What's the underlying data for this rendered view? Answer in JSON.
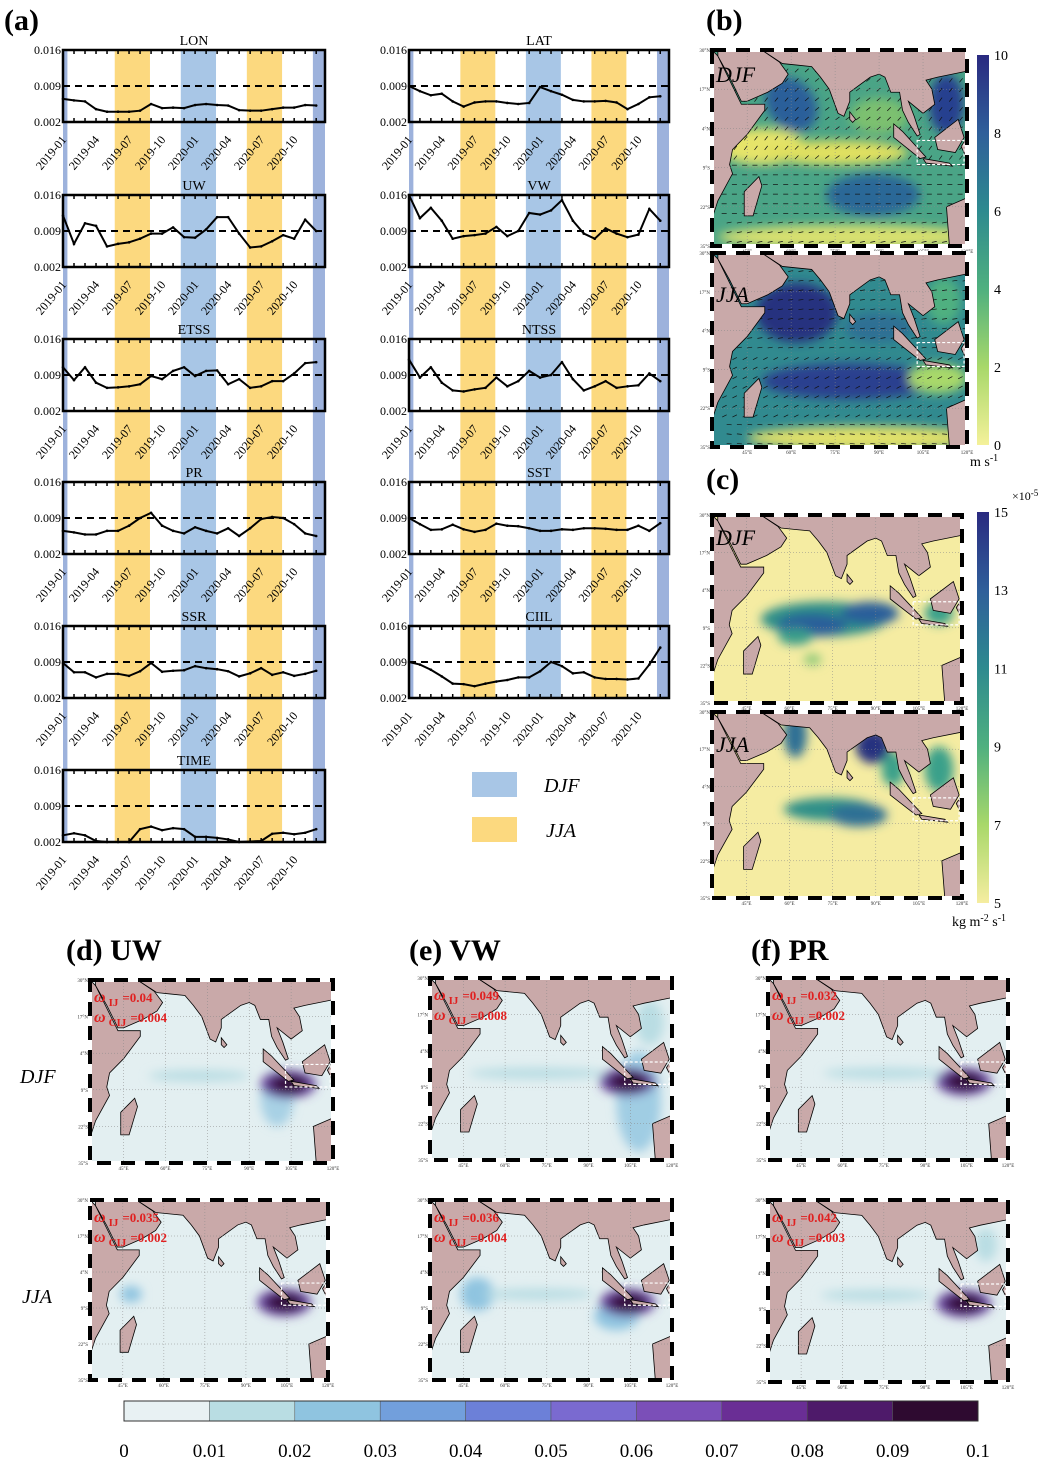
{
  "figure_labels": {
    "a": "(a)",
    "b": "(b)",
    "c": "(c)"
  },
  "colors": {
    "djf_band": "#a8c6e6",
    "djf_band_edge": "#9db2dc",
    "jja_band": "#fcd97f",
    "land": "#c9a9a9",
    "line": "#000000"
  },
  "legend": {
    "items": [
      {
        "label": "DJF",
        "color": "#a8c6e6"
      },
      {
        "label": "JJA",
        "color": "#fcd97f"
      }
    ]
  },
  "chart_data": [
    {
      "type": "line",
      "panel": "(a)",
      "x": [
        "2019-01",
        "2019-02",
        "2019-03",
        "2019-04",
        "2019-05",
        "2019-06",
        "2019-07",
        "2019-08",
        "2019-09",
        "2019-10",
        "2019-11",
        "2019-12",
        "2020-01",
        "2020-02",
        "2020-03",
        "2020-04",
        "2020-05",
        "2020-06",
        "2020-07",
        "2020-08",
        "2020-09",
        "2020-10",
        "2020-11",
        "2020-12"
      ],
      "xticks": [
        "2019-01",
        "2019-04",
        "2019-07",
        "2019-10",
        "2020-01",
        "2020-04",
        "2020-07",
        "2020-10"
      ],
      "ylim": [
        0.002,
        0.016
      ],
      "yticks": [
        "0.016",
        "0.009",
        "0.002"
      ],
      "reference_line": 0.009,
      "bands": [
        {
          "season": "DJF",
          "from": "2019-01",
          "to": "2019-01"
        },
        {
          "season": "JJA",
          "from": "2019-06",
          "to": "2019-08"
        },
        {
          "season": "DJF",
          "from": "2019-12",
          "to": "2020-02"
        },
        {
          "season": "JJA",
          "from": "2020-06",
          "to": "2020-08"
        },
        {
          "season": "DJF",
          "from": "2020-12",
          "to": "2020-12"
        }
      ],
      "series": [
        {
          "name": "LON",
          "values": [
            0.0065,
            0.0062,
            0.006,
            0.0045,
            0.004,
            0.004,
            0.004,
            0.0042,
            0.0055,
            0.0047,
            0.0048,
            0.0047,
            0.0053,
            0.0055,
            0.0053,
            0.0052,
            0.0043,
            0.0042,
            0.0042,
            0.0045,
            0.0048,
            0.0048,
            0.0053,
            0.0052
          ]
        },
        {
          "name": "LAT",
          "values": [
            0.009,
            0.008,
            0.0072,
            0.0075,
            0.006,
            0.005,
            0.0058,
            0.006,
            0.006,
            0.0057,
            0.0055,
            0.0057,
            0.0088,
            0.008,
            0.0073,
            0.0063,
            0.006,
            0.006,
            0.0061,
            0.0058,
            0.0045,
            0.0055,
            0.0068,
            0.007
          ]
        },
        {
          "name": "UW",
          "values": [
            0.012,
            0.0065,
            0.0105,
            0.01,
            0.006,
            0.0065,
            0.0068,
            0.0075,
            0.0085,
            0.0085,
            0.0097,
            0.0078,
            0.0077,
            0.0093,
            0.0117,
            0.0117,
            0.0085,
            0.0058,
            0.006,
            0.007,
            0.0082,
            0.0075,
            0.0112,
            0.009
          ]
        },
        {
          "name": "VW",
          "values": [
            0.016,
            0.0115,
            0.0135,
            0.011,
            0.0075,
            0.008,
            0.0082,
            0.0085,
            0.0098,
            0.008,
            0.009,
            0.0125,
            0.0122,
            0.013,
            0.015,
            0.011,
            0.0085,
            0.0075,
            0.0095,
            0.0085,
            0.0078,
            0.0083,
            0.0133,
            0.011
          ]
        },
        {
          "name": "ETSS",
          "values": [
            0.0105,
            0.008,
            0.0105,
            0.0075,
            0.0065,
            0.0066,
            0.0068,
            0.0072,
            0.0088,
            0.0082,
            0.0098,
            0.0105,
            0.0088,
            0.0098,
            0.0099,
            0.0072,
            0.0082,
            0.0065,
            0.0068,
            0.0078,
            0.0078,
            0.0093,
            0.0113,
            0.0115
          ]
        },
        {
          "name": "NTSS",
          "values": [
            0.012,
            0.0085,
            0.0105,
            0.0075,
            0.006,
            0.0058,
            0.0062,
            0.0065,
            0.0085,
            0.0068,
            0.0078,
            0.0098,
            0.0085,
            0.009,
            0.0115,
            0.0082,
            0.006,
            0.0068,
            0.0078,
            0.0065,
            0.0068,
            0.007,
            0.0093,
            0.0078
          ]
        },
        {
          "name": "PR",
          "values": [
            0.0065,
            0.0062,
            0.0058,
            0.0058,
            0.0065,
            0.0065,
            0.0075,
            0.009,
            0.01,
            0.0075,
            0.0065,
            0.006,
            0.0072,
            0.0065,
            0.006,
            0.007,
            0.0055,
            0.007,
            0.0088,
            0.0092,
            0.009,
            0.0078,
            0.006,
            0.0055
          ]
        },
        {
          "name": "SST",
          "values": [
            0.009,
            0.0078,
            0.0067,
            0.0068,
            0.0077,
            0.0068,
            0.0063,
            0.0067,
            0.0079,
            0.0075,
            0.0074,
            0.007,
            0.0065,
            0.0065,
            0.0068,
            0.0067,
            0.007,
            0.007,
            0.0069,
            0.0067,
            0.0067,
            0.0075,
            0.0065,
            0.008
          ]
        },
        {
          "name": "SSR",
          "values": [
            0.0088,
            0.007,
            0.007,
            0.006,
            0.0067,
            0.0067,
            0.0063,
            0.0072,
            0.0088,
            0.0071,
            0.0073,
            0.0074,
            0.0082,
            0.0078,
            0.0076,
            0.0072,
            0.0062,
            0.0068,
            0.0078,
            0.0065,
            0.007,
            0.0063,
            0.0067,
            0.0073
          ]
        },
        {
          "name": "CIIL",
          "values": [
            0.009,
            0.0085,
            0.0075,
            0.0062,
            0.0048,
            0.0047,
            0.0043,
            0.0048,
            0.0052,
            0.0055,
            0.006,
            0.006,
            0.0072,
            0.009,
            0.0082,
            0.0068,
            0.007,
            0.006,
            0.0057,
            0.0057,
            0.0056,
            0.0058,
            0.0085,
            0.0118
          ]
        },
        {
          "name": "TIME",
          "values": [
            0.0033,
            0.0037,
            0.0033,
            0.0022,
            0.002,
            0.002,
            0.002,
            0.0045,
            0.005,
            0.0043,
            0.0047,
            0.0045,
            0.003,
            0.003,
            0.0028,
            0.0025,
            0.002,
            0.0021,
            0.0022,
            0.0036,
            0.0038,
            0.0035,
            0.0038,
            0.0045
          ]
        }
      ]
    },
    {
      "type": "heatmap",
      "panel": "(b)",
      "maps": [
        {
          "label": "DJF"
        },
        {
          "label": "JJA"
        }
      ],
      "colorbar": {
        "ticks": [
          "10",
          "8",
          "6",
          "4",
          "2",
          "0"
        ],
        "range": [
          0,
          10
        ],
        "unit_main": "m s",
        "unit_exp": "-1",
        "colors": [
          "#f4f19a",
          "#a8d86a",
          "#4fb07f",
          "#2e8a8f",
          "#2f5f9a",
          "#2a2a80"
        ]
      },
      "vectors": true
    },
    {
      "type": "heatmap",
      "panel": "(c)",
      "maps": [
        {
          "label": "DJF"
        },
        {
          "label": "JJA"
        }
      ],
      "colorbar": {
        "ticks": [
          "15",
          "13",
          "11",
          "9",
          "7",
          "5"
        ],
        "range": [
          5,
          15
        ],
        "scale": "×10",
        "scale_exp": "-5",
        "unit_main": "kg m",
        "unit_exp1": "-2",
        "unit_mid": " s",
        "unit_exp2": "-1",
        "colors": [
          "#f5eda0",
          "#a8d86a",
          "#4fb07f",
          "#2e8a8f",
          "#2f5f9a",
          "#2a2a80"
        ]
      }
    },
    {
      "type": "heatmap",
      "panels": [
        {
          "title": "(d) UW",
          "rows": [
            {
              "season": "DJF",
              "annotations": [
                {
                  "symbol": "ω",
                  "sub": "IJ",
                  "value": "=0.04"
                },
                {
                  "symbol": "ω",
                  "sub": "CIJ",
                  "value": "=0.004"
                }
              ]
            },
            {
              "season": "JJA",
              "annotations": [
                {
                  "symbol": "ω",
                  "sub": "IJ",
                  "value": "=0.035"
                },
                {
                  "symbol": "ω",
                  "sub": "CIJ",
                  "value": "=0.002"
                }
              ]
            }
          ]
        },
        {
          "title": "(e) VW",
          "rows": [
            {
              "season": "DJF",
              "annotations": [
                {
                  "symbol": "ω",
                  "sub": "IJ",
                  "value": "=0.049"
                },
                {
                  "symbol": "ω",
                  "sub": "CIJ",
                  "value": "=0.008"
                }
              ]
            },
            {
              "season": "JJA",
              "annotations": [
                {
                  "symbol": "ω",
                  "sub": "IJ",
                  "value": "=0.036"
                },
                {
                  "symbol": "ω",
                  "sub": "CIJ",
                  "value": "=0.004"
                }
              ]
            }
          ]
        },
        {
          "title": "(f) PR",
          "rows": [
            {
              "season": "DJF",
              "annotations": [
                {
                  "symbol": "ω",
                  "sub": "IJ",
                  "value": "=0.032"
                },
                {
                  "symbol": "ω",
                  "sub": "CIJ",
                  "value": "=0.002"
                }
              ]
            },
            {
              "season": "JJA",
              "annotations": [
                {
                  "symbol": "ω",
                  "sub": "IJ",
                  "value": "=0.042"
                },
                {
                  "symbol": "ω",
                  "sub": "CIJ",
                  "value": "=0.003"
                }
              ]
            }
          ]
        }
      ],
      "row_labels": [
        "DJF",
        "JJA"
      ],
      "colorbar": {
        "ticks": [
          "0",
          "0.01",
          "0.02",
          "0.03",
          "0.04",
          "0.05",
          "0.06",
          "0.07",
          "0.08",
          "0.09",
          "0.1"
        ],
        "range": [
          0,
          0.1
        ],
        "colors": [
          "#e8f1f3",
          "#b9dde3",
          "#8fc4e0",
          "#729fdc",
          "#6c80d8",
          "#7a6ad0",
          "#7b4fb8",
          "#6a2e95",
          "#4e1a6a",
          "#2e0a30"
        ]
      }
    }
  ],
  "map_axes": {
    "lat_ticks": [
      "30°N",
      "17°N",
      "4°N",
      "9°S",
      "22°S",
      "35°S"
    ],
    "lon_ticks": [
      "45°E",
      "60°E",
      "75°E",
      "90°E",
      "105°E",
      "120°E"
    ]
  }
}
